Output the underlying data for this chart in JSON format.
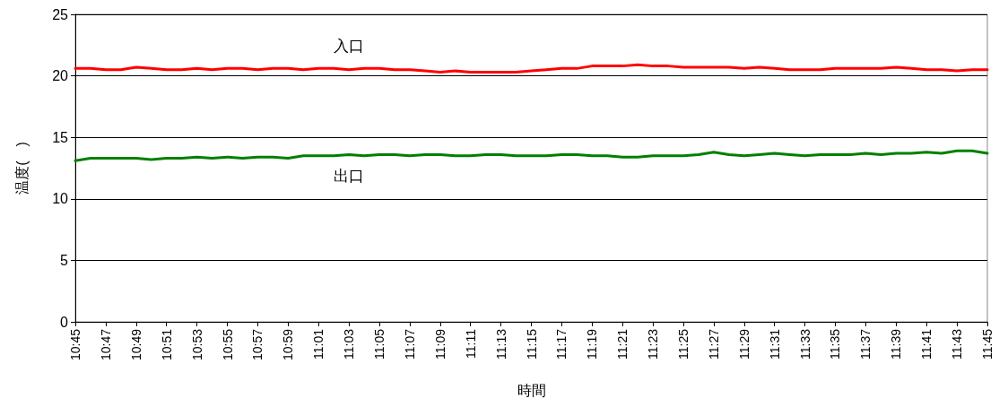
{
  "chart_data": {
    "type": "line",
    "xlabel": "時間",
    "ylabel": "温度(　)",
    "x": [
      10.75,
      10.7667,
      10.7833,
      10.8,
      10.8167,
      10.8333,
      10.85,
      10.8667,
      10.8833,
      10.9,
      10.9167,
      10.9333,
      10.95,
      10.9667,
      10.9833,
      11,
      11.0167,
      11.0333,
      11.05,
      11.0667,
      11.0833,
      11.1,
      11.1167,
      11.1333,
      11.15,
      11.1667,
      11.1833,
      11.2,
      11.2167,
      11.2333,
      11.25,
      11.2667,
      11.2833,
      11.3,
      11.3167,
      11.3333,
      11.35,
      11.3667,
      11.3833,
      11.4,
      11.4167,
      11.4333,
      11.45,
      11.4667,
      11.4833,
      11.5,
      11.5167,
      11.5333,
      11.55,
      11.5667,
      11.5833,
      11.6,
      11.6167,
      11.6333,
      11.65,
      11.6667,
      11.6833,
      11.7,
      11.7167,
      11.7333,
      11.75
    ],
    "series": [
      {
        "name": "入口",
        "color": "#ff0000",
        "values": [
          20.6,
          20.6,
          20.5,
          20.5,
          20.7,
          20.6,
          20.5,
          20.5,
          20.6,
          20.5,
          20.6,
          20.6,
          20.5,
          20.6,
          20.6,
          20.5,
          20.6,
          20.6,
          20.5,
          20.6,
          20.6,
          20.5,
          20.5,
          20.4,
          20.3,
          20.4,
          20.3,
          20.3,
          20.3,
          20.3,
          20.4,
          20.5,
          20.6,
          20.6,
          20.8,
          20.8,
          20.8,
          20.9,
          20.8,
          20.8,
          20.7,
          20.7,
          20.7,
          20.7,
          20.6,
          20.7,
          20.6,
          20.5,
          20.5,
          20.5,
          20.6,
          20.6,
          20.6,
          20.6,
          20.7,
          20.6,
          20.5,
          20.5,
          20.4,
          20.5,
          20.5
        ]
      },
      {
        "name": "出口",
        "color": "#008000",
        "values": [
          13.1,
          13.3,
          13.3,
          13.3,
          13.3,
          13.2,
          13.3,
          13.3,
          13.4,
          13.3,
          13.4,
          13.3,
          13.4,
          13.4,
          13.3,
          13.5,
          13.5,
          13.5,
          13.6,
          13.5,
          13.6,
          13.6,
          13.5,
          13.6,
          13.6,
          13.5,
          13.5,
          13.6,
          13.6,
          13.5,
          13.5,
          13.5,
          13.6,
          13.6,
          13.5,
          13.5,
          13.4,
          13.4,
          13.5,
          13.5,
          13.5,
          13.6,
          13.8,
          13.6,
          13.5,
          13.6,
          13.7,
          13.6,
          13.5,
          13.6,
          13.6,
          13.6,
          13.7,
          13.6,
          13.7,
          13.7,
          13.8,
          13.7,
          13.9,
          13.9,
          13.7
        ]
      }
    ],
    "xlim": [
      10.75,
      11.75
    ],
    "xticks": [
      {
        "value": 10.75,
        "label": "10:45"
      },
      {
        "value": 10.7833,
        "label": "10:47"
      },
      {
        "value": 10.8167,
        "label": "10:49"
      },
      {
        "value": 10.85,
        "label": "10:51"
      },
      {
        "value": 10.8833,
        "label": "10:53"
      },
      {
        "value": 10.9167,
        "label": "10:55"
      },
      {
        "value": 10.95,
        "label": "10:57"
      },
      {
        "value": 10.9833,
        "label": "10:59"
      },
      {
        "value": 11.0167,
        "label": "11:01"
      },
      {
        "value": 11.05,
        "label": "11:03"
      },
      {
        "value": 11.0833,
        "label": "11:05"
      },
      {
        "value": 11.1167,
        "label": "11:07"
      },
      {
        "value": 11.15,
        "label": "11:09"
      },
      {
        "value": 11.1833,
        "label": "11:11"
      },
      {
        "value": 11.2167,
        "label": "11:13"
      },
      {
        "value": 11.25,
        "label": "11:15"
      },
      {
        "value": 11.2833,
        "label": "11:17"
      },
      {
        "value": 11.3167,
        "label": "11:19"
      },
      {
        "value": 11.35,
        "label": "11:21"
      },
      {
        "value": 11.3833,
        "label": "11:23"
      },
      {
        "value": 11.4167,
        "label": "11:25"
      },
      {
        "value": 11.45,
        "label": "11:27"
      },
      {
        "value": 11.4833,
        "label": "11:29"
      },
      {
        "value": 11.5167,
        "label": "11:31"
      },
      {
        "value": 11.55,
        "label": "11:33"
      },
      {
        "value": 11.5833,
        "label": "11:35"
      },
      {
        "value": 11.6167,
        "label": "11:37"
      },
      {
        "value": 11.65,
        "label": "11:39"
      },
      {
        "value": 11.6833,
        "label": "11:41"
      },
      {
        "value": 11.7167,
        "label": "11:43"
      },
      {
        "value": 11.75,
        "label": "11:45"
      }
    ],
    "ylim": [
      0,
      25
    ],
    "yticks": [
      0,
      5,
      10,
      15,
      20,
      25
    ],
    "grid": "y",
    "marker": "none",
    "line_style": "solid"
  }
}
